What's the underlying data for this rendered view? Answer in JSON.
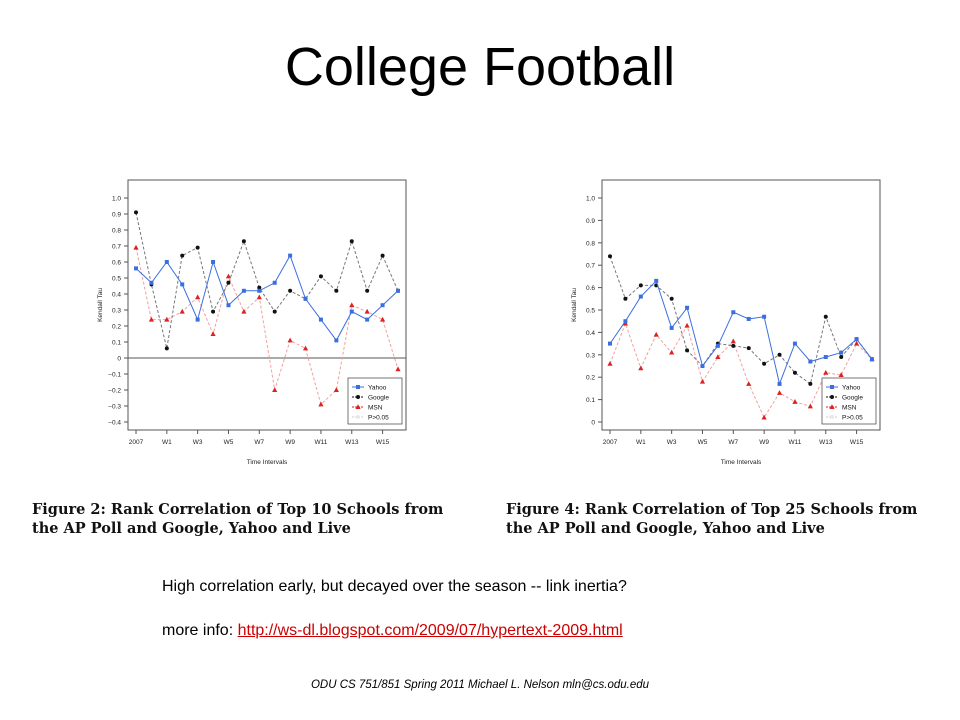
{
  "slide": {
    "title": "College Football",
    "note": "High correlation early, but decayed over the season -- link inertia?",
    "more_info_label": "more info: ",
    "more_info_link": "http://ws-dl.blogspot.com/2009/07/hypertext-2009.html",
    "footer": "ODU CS 751/851 Spring 2011 Michael L. Nelson mln@cs.odu.edu",
    "captions": [
      {
        "line1": "Figure 2:  Rank Correlation of Top 10 Schools from",
        "line2": "the AP Poll and Google, Yahoo and Live"
      },
      {
        "line1": "Figure 4:  Rank Correlation of Top 25 Schools from",
        "line2": "the AP Poll and Google, Yahoo and Live"
      }
    ]
  },
  "chart_data": [
    {
      "type": "line",
      "xlabel": "Time Intervals",
      "ylabel": "Kendall Tau",
      "ylim": [
        -0.4,
        1.0
      ],
      "yticks": [
        "1.0",
        "0.9",
        "0.8",
        "0.7",
        "0.6",
        "0.5",
        "0.4",
        "0.3",
        "0.2",
        "0.1",
        "0",
        "−0.1",
        "−0.2",
        "−0.3",
        "−0.4"
      ],
      "xticks": [
        "2007",
        "W1",
        "W3",
        "W5",
        "W7",
        "W9",
        "W11",
        "W13",
        "W15"
      ],
      "zero_line": true,
      "legend_position": "bottom-right",
      "legend": [
        "Yahoo",
        "Google",
        "MSN",
        "P>0.05"
      ],
      "colors": {
        "Yahoo": "#3b6fe0",
        "Google": "#111111",
        "MSN": "#dd2222",
        "P>0.05": "#dddddd"
      },
      "series": [
        {
          "name": "Yahoo",
          "values": [
            0.56,
            0.47,
            0.6,
            0.46,
            0.24,
            0.6,
            0.33,
            0.42,
            0.42,
            0.47,
            0.64,
            0.37,
            0.24,
            0.11,
            0.29,
            0.24,
            0.33,
            0.42
          ]
        },
        {
          "name": "Google",
          "values": [
            0.91,
            0.46,
            0.06,
            0.64,
            0.69,
            0.29,
            0.47,
            0.73,
            0.44,
            0.29,
            0.42,
            0.37,
            0.51,
            0.42,
            0.73,
            0.42,
            0.64,
            0.42
          ]
        },
        {
          "name": "MSN",
          "values": [
            0.69,
            0.24,
            0.24,
            0.29,
            0.38,
            0.15,
            0.51,
            0.29,
            0.38,
            -0.2,
            0.11,
            0.06,
            -0.29,
            -0.2,
            0.33,
            0.29,
            0.24,
            -0.07
          ]
        }
      ]
    },
    {
      "type": "line",
      "xlabel": "Time Intervals",
      "ylabel": "Kendall Tau",
      "ylim": [
        0.0,
        1.0
      ],
      "yticks": [
        "1.0",
        "0.9",
        "0.8",
        "0.7",
        "0.6",
        "0.5",
        "0.4",
        "0.3",
        "0.2",
        "0.1",
        "0"
      ],
      "xticks": [
        "2007",
        "W1",
        "W3",
        "W5",
        "W7",
        "W9",
        "W11",
        "W13",
        "W15"
      ],
      "zero_line": false,
      "legend_position": "bottom-right",
      "legend": [
        "Yahoo",
        "Google",
        "MSN",
        "P>0.05"
      ],
      "colors": {
        "Yahoo": "#3b6fe0",
        "Google": "#111111",
        "MSN": "#dd2222",
        "P>0.05": "#dddddd"
      },
      "series": [
        {
          "name": "Yahoo",
          "values": [
            0.35,
            0.45,
            0.56,
            0.63,
            0.42,
            0.51,
            0.25,
            0.34,
            0.49,
            0.46,
            0.47,
            0.17,
            0.35,
            0.27,
            0.29,
            0.31,
            0.37,
            0.28
          ]
        },
        {
          "name": "Google",
          "values": [
            0.74,
            0.55,
            0.61,
            0.61,
            0.55,
            0.32,
            0.25,
            0.35,
            0.34,
            0.33,
            0.26,
            0.3,
            0.22,
            0.17,
            0.47,
            0.29,
            0.37,
            0.28
          ]
        },
        {
          "name": "MSN",
          "values": [
            0.26,
            0.44,
            0.24,
            0.39,
            0.31,
            0.43,
            0.18,
            0.29,
            0.36,
            0.17,
            0.02,
            0.13,
            0.09,
            0.07,
            0.22,
            0.21,
            0.35,
            0.28
          ]
        }
      ]
    }
  ]
}
